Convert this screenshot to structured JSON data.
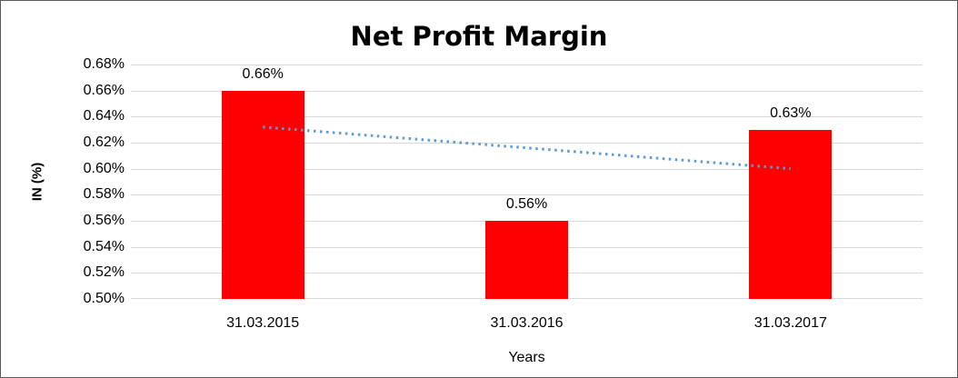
{
  "chart_data": {
    "type": "bar",
    "title": "Net Profit Margin",
    "xlabel": "Years",
    "ylabel": "IN (%)",
    "categories": [
      "31.03.2015",
      "31.03.2016",
      "31.03.2017"
    ],
    "series": [
      {
        "name": "Net Profit Margin",
        "values": [
          0.66,
          0.56,
          0.63
        ],
        "labels": [
          "0.66%",
          "0.56%",
          "0.63%"
        ],
        "color": "#FF0000"
      }
    ],
    "trendline": {
      "type": "linear",
      "style": "dotted",
      "color": "#5B9BD5",
      "start_value": 0.632,
      "end_value": 0.6
    },
    "ylim": [
      0.5,
      0.68
    ],
    "ytick_step": 0.02,
    "ytick_labels": [
      "0.68%",
      "0.66%",
      "0.64%",
      "0.62%",
      "0.60%",
      "0.58%",
      "0.56%",
      "0.54%",
      "0.52%",
      "0.50%"
    ],
    "grid": "horizontal-gridlines",
    "legend": "none",
    "colors": {
      "bar": "#FF0000",
      "trendline": "#5B9BD5",
      "gridline": "#D9D9D9",
      "text": "#000000",
      "border": "#595959",
      "background": "#FFFFFF"
    }
  }
}
